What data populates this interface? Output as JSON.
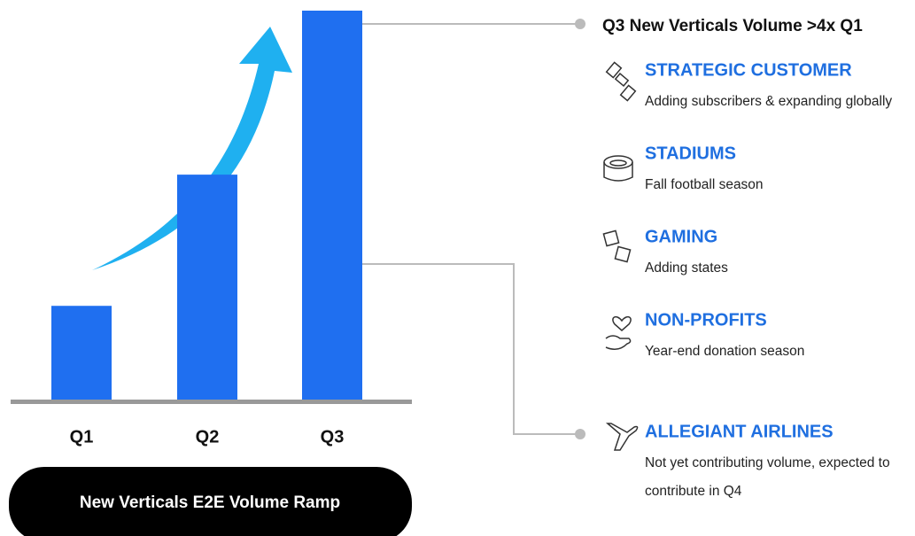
{
  "chart_data": {
    "type": "bar",
    "title": "New Verticals E2E Volume Ramp",
    "categories": [
      "Q1",
      "Q2",
      "Q3"
    ],
    "values": [
      1,
      2.4,
      4.15
    ],
    "color": "#1f6ff0",
    "ylim": [
      0,
      4.15
    ]
  },
  "callout": {
    "headline": "Q3 New Verticals Volume >4x Q1",
    "items": [
      {
        "title": "STRATEGIC CUSTOMER",
        "description": [
          "Adding subscribers & expanding globally"
        ]
      },
      {
        "title": "STADIUMS",
        "description": [
          "Fall football season"
        ]
      },
      {
        "title": "GAMING",
        "description": [
          "Adding states"
        ]
      },
      {
        "title": "NON-PROFITS",
        "description": [
          "Year-end donation season"
        ]
      },
      {
        "title": "ALLEGIANT AIRLINES",
        "description": [
          "Not yet contributing volume, expected to",
          "contribute in Q4"
        ]
      }
    ]
  }
}
